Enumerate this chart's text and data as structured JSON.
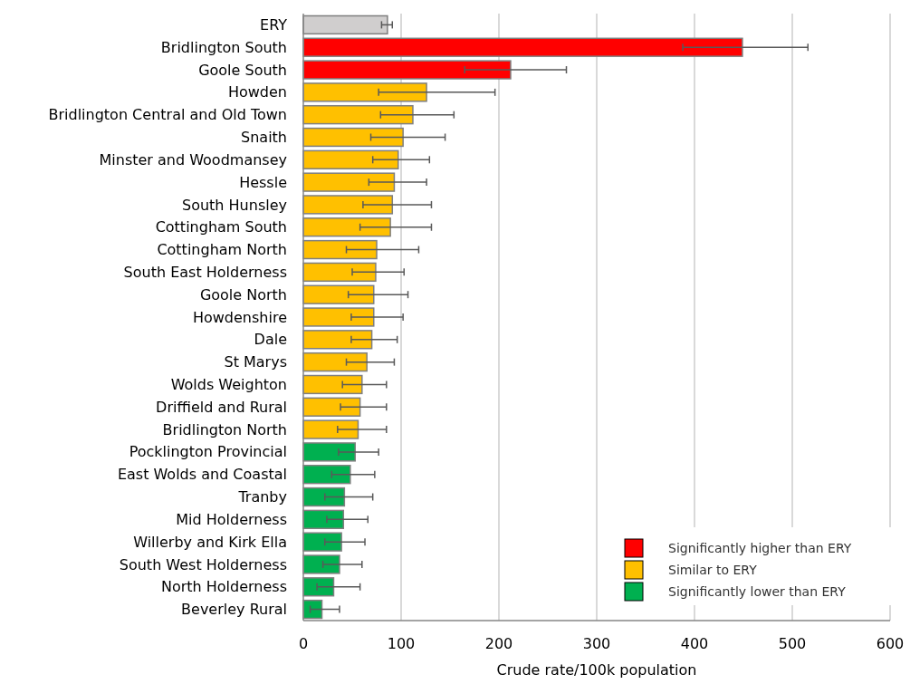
{
  "chart_data": {
    "type": "bar",
    "orientation": "horizontal",
    "stacked": true,
    "xlabel": "Crude rate/100k population",
    "xlim": [
      0,
      600
    ],
    "xticks": [
      0,
      100,
      200,
      300,
      400,
      500,
      600
    ],
    "grid": "x",
    "legend": "bottom right",
    "categories": [
      "ERY",
      "Bridlington South",
      "Goole South",
      "Howden",
      "Bridlington Central and Old Town",
      "Snaith",
      "Minster and Woodmansey",
      "Hessle",
      "South Hunsley",
      "Cottingham South",
      "Cottingham North",
      "South East Holderness",
      "Goole North",
      "Howdenshire",
      "Dale",
      "St Marys",
      "Wolds Weighton",
      "Driffield and Rural",
      "Bridlington North",
      "Pocklington Provincial",
      "East Wolds and Coastal",
      "Tranby",
      "Mid Holderness",
      "Willerby and Kirk Ella",
      "South West Holderness",
      "North Holderness",
      "Beverley Rural"
    ],
    "series": [
      {
        "color": "#d0cece",
        "values": [
          86,
          null,
          null,
          null,
          null,
          null,
          null,
          null,
          null,
          null,
          null,
          null,
          null,
          null,
          null,
          null,
          null,
          null,
          null,
          null,
          null,
          null,
          null,
          null,
          null,
          null,
          null
        ],
        "errors": [
          [
            80,
            91
          ],
          null,
          null,
          null,
          null,
          null,
          null,
          null,
          null,
          null,
          null,
          null,
          null,
          null,
          null,
          null,
          null,
          null,
          null,
          null,
          null,
          null,
          null,
          null,
          null,
          null,
          null
        ]
      },
      {
        "name": "Significantly higher than ERY",
        "color": "#ff0000",
        "values": [
          null,
          449,
          212,
          null,
          null,
          null,
          null,
          null,
          null,
          null,
          null,
          null,
          null,
          null,
          null,
          null,
          null,
          null,
          null,
          null,
          null,
          null,
          null,
          null,
          null,
          null,
          null
        ],
        "errors": [
          null,
          [
            388,
            516
          ],
          [
            165,
            269
          ],
          null,
          null,
          null,
          null,
          null,
          null,
          null,
          null,
          null,
          null,
          null,
          null,
          null,
          null,
          null,
          null,
          null,
          null,
          null,
          null,
          null,
          null,
          null,
          null
        ]
      },
      {
        "name": "Similar to ERY",
        "color": "#ffc000",
        "values": [
          null,
          null,
          null,
          126,
          112,
          102,
          97,
          93,
          91,
          89,
          75,
          74,
          72,
          72,
          70,
          65,
          60,
          58,
          56,
          null,
          null,
          null,
          null,
          null,
          null,
          null,
          null
        ],
        "errors": [
          null,
          null,
          null,
          [
            77,
            196
          ],
          [
            79,
            154
          ],
          [
            69,
            145
          ],
          [
            71,
            129
          ],
          [
            67,
            126
          ],
          [
            61,
            131
          ],
          [
            58,
            131
          ],
          [
            44,
            118
          ],
          [
            50,
            103
          ],
          [
            46,
            107
          ],
          [
            49,
            102
          ],
          [
            49,
            96
          ],
          [
            44,
            93
          ],
          [
            40,
            85
          ],
          [
            38,
            85
          ],
          [
            35,
            85
          ],
          null,
          null,
          null,
          null,
          null,
          null,
          null,
          null
        ]
      },
      {
        "name": "Significantly lower than ERY",
        "color": "#00b050",
        "values": [
          null,
          null,
          null,
          null,
          null,
          null,
          null,
          null,
          null,
          null,
          null,
          null,
          null,
          null,
          null,
          null,
          null,
          null,
          null,
          53,
          48,
          42,
          41,
          39,
          37,
          31,
          19
        ],
        "errors": [
          null,
          null,
          null,
          null,
          null,
          null,
          null,
          null,
          null,
          null,
          null,
          null,
          null,
          null,
          null,
          null,
          null,
          null,
          null,
          [
            36,
            77
          ],
          [
            29,
            73
          ],
          [
            22,
            71
          ],
          [
            24,
            66
          ],
          [
            22,
            63
          ],
          [
            20,
            60
          ],
          [
            14,
            58
          ],
          [
            7,
            37
          ]
        ]
      }
    ]
  }
}
